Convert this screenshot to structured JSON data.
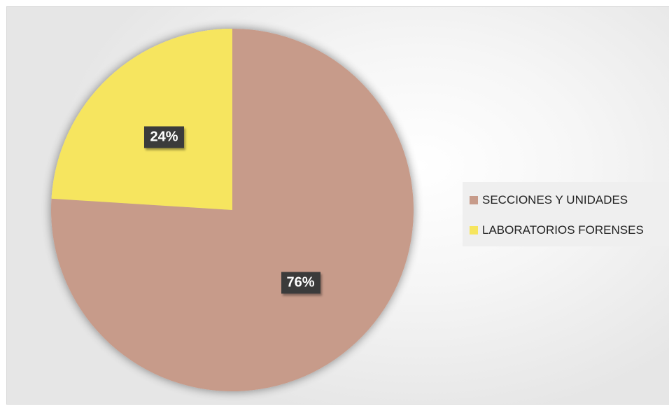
{
  "chart_data": {
    "type": "pie",
    "title": "",
    "slices": [
      {
        "label": "SECCIONES Y UNIDADES",
        "value": 76,
        "display": "76%",
        "color": "#c79b8a"
      },
      {
        "label": "LABORATORIOS FORENSES",
        "value": 24,
        "display": "24%",
        "color": "#f6e55e"
      }
    ],
    "legend_position": "right",
    "data_labels": true
  }
}
